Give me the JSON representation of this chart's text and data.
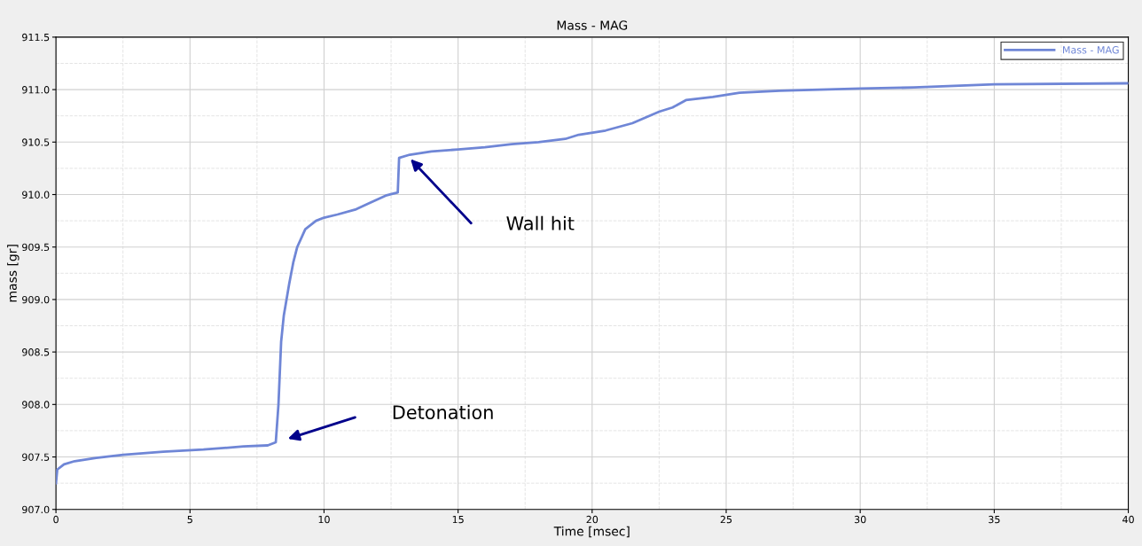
{
  "chart_data": {
    "type": "line",
    "title": "Mass - MAG",
    "xlabel": "Time [msec]",
    "ylabel": "mass [gr]",
    "xlim": [
      0,
      40
    ],
    "ylim": [
      907.0,
      911.5
    ],
    "xticks": [
      0,
      5,
      10,
      15,
      20,
      25,
      30,
      35,
      40
    ],
    "yticks": [
      {
        "value": 907.0,
        "label": "907.0"
      },
      {
        "value": 907.5,
        "label": "907.5"
      },
      {
        "value": 908.0,
        "label": "908.0"
      },
      {
        "value": 908.5,
        "label": "908.5"
      },
      {
        "value": 909.0,
        "label": "909.0"
      },
      {
        "value": 909.5,
        "label": "909.5"
      },
      {
        "value": 910.0,
        "label": "910.0"
      },
      {
        "value": 910.5,
        "label": "910.5"
      },
      {
        "value": 911.0,
        "label": "911.0"
      },
      {
        "value": 911.5,
        "label": "911.5"
      }
    ],
    "grid": true,
    "legend": "top right",
    "marker": "none",
    "line_style": "solid",
    "x": [
      0,
      0.05,
      0.3,
      0.7,
      1.5,
      2.5,
      4,
      5.5,
      7,
      7.9,
      8.2,
      8.3,
      8.4,
      8.5,
      8.7,
      8.85,
      9.0,
      9.3,
      9.7,
      10,
      10.5,
      11.2,
      11.7,
      12.3,
      12.75,
      12.8,
      13.2,
      14,
      15,
      16,
      17,
      18,
      19,
      19.5,
      20.5,
      21.5,
      22.5,
      23,
      23.5,
      24.5,
      25.5,
      27,
      30,
      32,
      35,
      40
    ],
    "series": [
      {
        "name": "Mass - MAG",
        "color": "#6f86d6",
        "values": [
          907.25,
          907.38,
          907.43,
          907.46,
          907.49,
          907.52,
          907.55,
          907.57,
          907.6,
          907.61,
          907.64,
          908.0,
          908.6,
          908.85,
          909.15,
          909.35,
          909.5,
          909.67,
          909.75,
          909.78,
          909.81,
          909.86,
          909.92,
          909.99,
          910.02,
          910.35,
          910.38,
          910.41,
          910.43,
          910.45,
          910.48,
          910.5,
          910.53,
          910.57,
          910.61,
          910.68,
          910.79,
          910.83,
          910.9,
          910.93,
          910.97,
          910.99,
          911.01,
          911.02,
          911.05,
          911.06
        ]
      }
    ],
    "annotations": [
      "Detonation",
      "Wall hit"
    ]
  }
}
